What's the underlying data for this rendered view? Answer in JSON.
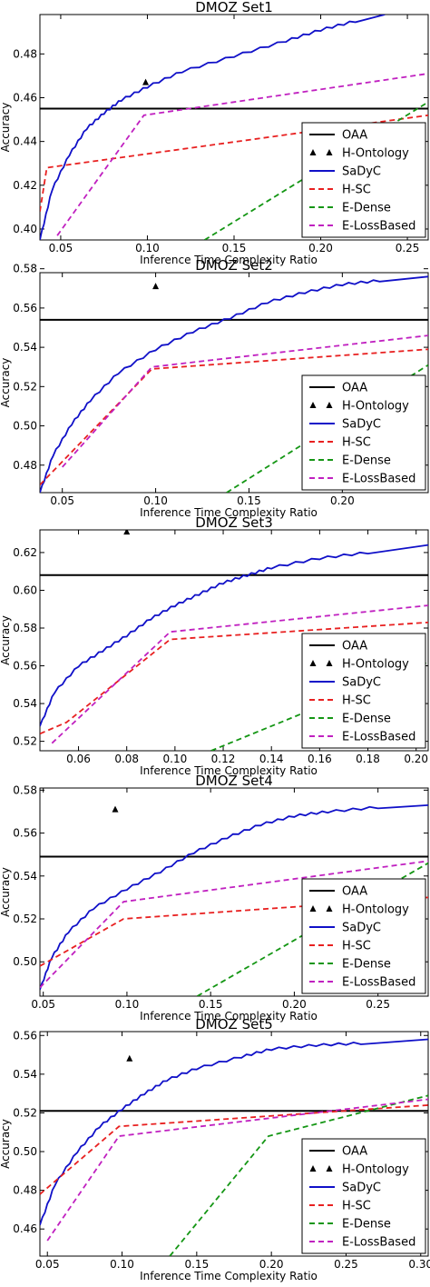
{
  "chart_data": [
    {
      "type": "line",
      "title": "DMOZ Set1",
      "xlabel": "Inference Time Complexity Ratio",
      "ylabel": "Accuracy",
      "xlim": [
        0.038,
        0.262
      ],
      "ylim": [
        0.395,
        0.498
      ],
      "xticks": [
        0.05,
        0.1,
        0.15,
        0.2,
        0.25
      ],
      "xtick_labels": [
        "0.05",
        "0.10",
        "0.15",
        "0.20",
        "0.25"
      ],
      "yticks": [
        0.4,
        0.42,
        0.44,
        0.46,
        0.48
      ],
      "ytick_labels": [
        "0.40",
        "0.42",
        "0.44",
        "0.46",
        "0.48"
      ],
      "legend_position": "lower-right",
      "series": [
        {
          "name": "OAA",
          "color": "#000000",
          "style": "solid",
          "x": [
            0.038,
            0.262
          ],
          "y": [
            0.455,
            0.455
          ]
        },
        {
          "name": "H-Ontology",
          "color": "#000000",
          "style": "marker",
          "x": [
            0.099
          ],
          "y": [
            0.467
          ]
        },
        {
          "name": "SaDyC",
          "color": "#1010c8",
          "style": "solid",
          "x": [
            0.038,
            0.045,
            0.055,
            0.065,
            0.075,
            0.085,
            0.1,
            0.12,
            0.15,
            0.18,
            0.2,
            0.22,
            0.237
          ],
          "y": [
            0.395,
            0.418,
            0.434,
            0.446,
            0.453,
            0.459,
            0.465,
            0.472,
            0.479,
            0.486,
            0.491,
            0.495,
            0.498
          ]
        },
        {
          "name": "H-SC",
          "color": "#e82020",
          "style": "dashed",
          "x": [
            0.038,
            0.042,
            0.262
          ],
          "y": [
            0.408,
            0.428,
            0.452
          ]
        },
        {
          "name": "E-Dense",
          "color": "#149614",
          "style": "dashed",
          "x": [
            0.133,
            0.262
          ],
          "y": [
            0.395,
            0.458
          ]
        },
        {
          "name": "E-LossBased",
          "color": "#c020c0",
          "style": "dashed",
          "x": [
            0.048,
            0.098,
            0.262
          ],
          "y": [
            0.397,
            0.452,
            0.471
          ]
        }
      ]
    },
    {
      "type": "line",
      "title": "DMOZ Set2",
      "xlabel": "Inference Time Complexity Ratio",
      "ylabel": "Accuracy",
      "xlim": [
        0.038,
        0.246
      ],
      "ylim": [
        0.466,
        0.578
      ],
      "xticks": [
        0.05,
        0.1,
        0.15,
        0.2
      ],
      "xtick_labels": [
        "0.05",
        "0.10",
        "0.15",
        "0.20"
      ],
      "yticks": [
        0.48,
        0.5,
        0.52,
        0.54,
        0.56,
        0.58
      ],
      "ytick_labels": [
        "0.48",
        "0.50",
        "0.52",
        "0.54",
        "0.56",
        "0.58"
      ],
      "legend_position": "lower-right",
      "series": [
        {
          "name": "OAA",
          "color": "#000000",
          "style": "solid",
          "x": [
            0.038,
            0.246
          ],
          "y": [
            0.554,
            0.554
          ]
        },
        {
          "name": "H-Ontology",
          "color": "#000000",
          "style": "marker",
          "x": [
            0.1
          ],
          "y": [
            0.571
          ]
        },
        {
          "name": "SaDyC",
          "color": "#1010c8",
          "style": "solid",
          "x": [
            0.038,
            0.045,
            0.055,
            0.065,
            0.08,
            0.1,
            0.12,
            0.14,
            0.16,
            0.18,
            0.2,
            0.22,
            0.246
          ],
          "y": [
            0.466,
            0.485,
            0.501,
            0.513,
            0.527,
            0.539,
            0.548,
            0.555,
            0.563,
            0.568,
            0.572,
            0.574,
            0.576
          ]
        },
        {
          "name": "H-SC",
          "color": "#e82020",
          "style": "dashed",
          "x": [
            0.038,
            0.098,
            0.246
          ],
          "y": [
            0.47,
            0.529,
            0.539
          ]
        },
        {
          "name": "E-Dense",
          "color": "#149614",
          "style": "dashed",
          "x": [
            0.138,
            0.246
          ],
          "y": [
            0.466,
            0.531
          ]
        },
        {
          "name": "E-LossBased",
          "color": "#c020c0",
          "style": "dashed",
          "x": [
            0.05,
            0.098,
            0.246
          ],
          "y": [
            0.479,
            0.53,
            0.546
          ]
        }
      ]
    },
    {
      "type": "line",
      "title": "DMOZ Set3",
      "xlabel": "Inference Time Complexity Ratio",
      "ylabel": "Accuracy",
      "xlim": [
        0.044,
        0.205
      ],
      "ylim": [
        0.515,
        0.632
      ],
      "xticks": [
        0.06,
        0.08,
        0.1,
        0.12,
        0.14,
        0.16,
        0.18,
        0.2
      ],
      "xtick_labels": [
        "0.06",
        "0.08",
        "0.10",
        "0.12",
        "0.14",
        "0.16",
        "0.18",
        "0.20"
      ],
      "yticks": [
        0.52,
        0.54,
        0.56,
        0.58,
        0.6,
        0.62
      ],
      "ytick_labels": [
        "0.52",
        "0.54",
        "0.56",
        "0.58",
        "0.60",
        "0.62"
      ],
      "legend_position": "lower-right",
      "series": [
        {
          "name": "OAA",
          "color": "#000000",
          "style": "solid",
          "x": [
            0.044,
            0.205
          ],
          "y": [
            0.608,
            0.608
          ]
        },
        {
          "name": "H-Ontology",
          "color": "#000000",
          "style": "marker",
          "x": [
            0.08
          ],
          "y": [
            0.631
          ]
        },
        {
          "name": "SaDyC",
          "color": "#1010c8",
          "style": "solid",
          "x": [
            0.044,
            0.05,
            0.06,
            0.07,
            0.08,
            0.09,
            0.1,
            0.11,
            0.12,
            0.13,
            0.14,
            0.16,
            0.18,
            0.205
          ],
          "y": [
            0.528,
            0.546,
            0.56,
            0.568,
            0.576,
            0.585,
            0.592,
            0.598,
            0.604,
            0.608,
            0.612,
            0.617,
            0.62,
            0.624
          ]
        },
        {
          "name": "H-SC",
          "color": "#e82020",
          "style": "dashed",
          "x": [
            0.044,
            0.055,
            0.098,
            0.205
          ],
          "y": [
            0.524,
            0.53,
            0.574,
            0.583
          ]
        },
        {
          "name": "E-Dense",
          "color": "#149614",
          "style": "dashed",
          "x": [
            0.115,
            0.205
          ],
          "y": [
            0.515,
            0.562
          ]
        },
        {
          "name": "E-LossBased",
          "color": "#c020c0",
          "style": "dashed",
          "x": [
            0.049,
            0.098,
            0.205
          ],
          "y": [
            0.519,
            0.578,
            0.592
          ]
        }
      ]
    },
    {
      "type": "line",
      "title": "DMOZ Set4",
      "xlabel": "Inference Time Complexity Ratio",
      "ylabel": "Accuracy",
      "xlim": [
        0.048,
        0.28
      ],
      "ylim": [
        0.484,
        0.581
      ],
      "xticks": [
        0.05,
        0.1,
        0.15,
        0.2,
        0.25
      ],
      "xtick_labels": [
        "0.05",
        "0.10",
        "0.15",
        "0.20",
        "0.25"
      ],
      "yticks": [
        0.5,
        0.52,
        0.54,
        0.56,
        0.58
      ],
      "ytick_labels": [
        "0.50",
        "0.52",
        "0.54",
        "0.56",
        "0.58"
      ],
      "legend_position": "lower-right",
      "series": [
        {
          "name": "OAA",
          "color": "#000000",
          "style": "solid",
          "x": [
            0.048,
            0.28
          ],
          "y": [
            0.549,
            0.549
          ]
        },
        {
          "name": "H-Ontology",
          "color": "#000000",
          "style": "marker",
          "x": [
            0.093
          ],
          "y": [
            0.571
          ]
        },
        {
          "name": "SaDyC",
          "color": "#1010c8",
          "style": "solid",
          "x": [
            0.048,
            0.055,
            0.065,
            0.08,
            0.1,
            0.12,
            0.14,
            0.16,
            0.18,
            0.2,
            0.22,
            0.25,
            0.28
          ],
          "y": [
            0.487,
            0.502,
            0.514,
            0.525,
            0.534,
            0.542,
            0.551,
            0.558,
            0.564,
            0.568,
            0.57,
            0.572,
            0.573
          ]
        },
        {
          "name": "H-SC",
          "color": "#e82020",
          "style": "dashed",
          "x": [
            0.048,
            0.098,
            0.28
          ],
          "y": [
            0.498,
            0.52,
            0.53
          ]
        },
        {
          "name": "E-Dense",
          "color": "#149614",
          "style": "dashed",
          "x": [
            0.142,
            0.28
          ],
          "y": [
            0.484,
            0.546
          ]
        },
        {
          "name": "E-LossBased",
          "color": "#c020c0",
          "style": "dashed",
          "x": [
            0.048,
            0.098,
            0.28
          ],
          "y": [
            0.488,
            0.528,
            0.547
          ]
        }
      ]
    },
    {
      "type": "line",
      "title": "DMOZ Set5",
      "xlabel": "Inference Time Complexity Ratio",
      "ylabel": "Accuracy",
      "xlim": [
        0.045,
        0.305
      ],
      "ylim": [
        0.446,
        0.562
      ],
      "xticks": [
        0.05,
        0.1,
        0.15,
        0.2,
        0.25,
        0.3
      ],
      "xtick_labels": [
        "0.05",
        "0.10",
        "0.15",
        "0.20",
        "0.25",
        "0.30"
      ],
      "yticks": [
        0.46,
        0.48,
        0.5,
        0.52,
        0.54,
        0.56
      ],
      "ytick_labels": [
        "0.46",
        "0.48",
        "0.50",
        "0.52",
        "0.54",
        "0.56"
      ],
      "legend_position": "lower-right",
      "series": [
        {
          "name": "OAA",
          "color": "#000000",
          "style": "solid",
          "x": [
            0.045,
            0.305
          ],
          "y": [
            0.521,
            0.521
          ]
        },
        {
          "name": "H-Ontology",
          "color": "#000000",
          "style": "marker",
          "x": [
            0.105
          ],
          "y": [
            0.548
          ]
        },
        {
          "name": "SaDyC",
          "color": "#1010c8",
          "style": "solid",
          "x": [
            0.045,
            0.055,
            0.07,
            0.085,
            0.1,
            0.115,
            0.13,
            0.15,
            0.18,
            0.2,
            0.23,
            0.26,
            0.305
          ],
          "y": [
            0.462,
            0.483,
            0.5,
            0.513,
            0.522,
            0.53,
            0.537,
            0.543,
            0.549,
            0.553,
            0.555,
            0.556,
            0.558
          ]
        },
        {
          "name": "H-SC",
          "color": "#e82020",
          "style": "dashed",
          "x": [
            0.045,
            0.098,
            0.305
          ],
          "y": [
            0.478,
            0.513,
            0.524
          ]
        },
        {
          "name": "E-Dense",
          "color": "#149614",
          "style": "dashed",
          "x": [
            0.132,
            0.198,
            0.305
          ],
          "y": [
            0.446,
            0.508,
            0.529
          ]
        },
        {
          "name": "E-LossBased",
          "color": "#c020c0",
          "style": "dashed",
          "x": [
            0.05,
            0.098,
            0.305
          ],
          "y": [
            0.454,
            0.508,
            0.527
          ]
        }
      ]
    }
  ]
}
